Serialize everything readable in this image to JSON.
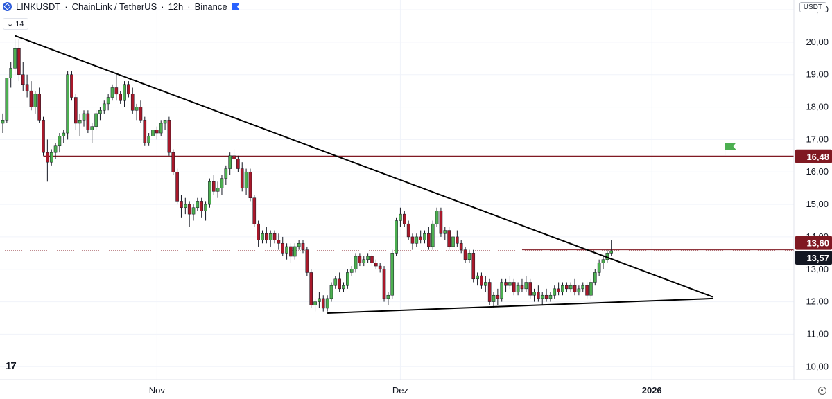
{
  "header": {
    "symbol": "LINKUSDT",
    "name": "ChainLink / TetherUS",
    "interval": "12h",
    "exchange": "Binance",
    "separator": "·",
    "slash_icon": "logo-icon",
    "flag_icon": "flag-icon"
  },
  "interval_indicator": {
    "label": "14",
    "icon": "chevron-down-icon"
  },
  "currency_label": "USDT",
  "chart_data": {
    "type": "candlestick",
    "title": "LINKUSDT · ChainLink / TetherUS · 12h · Binance",
    "y_axis": {
      "ticks": [
        "21,00",
        "20,00",
        "19,00",
        "18,00",
        "17,00",
        "16,00",
        "15,00",
        "14,00",
        "13,00",
        "12,00",
        "11,00",
        "10,00"
      ],
      "tick_values": [
        21,
        20,
        19,
        18,
        17,
        16,
        15,
        14,
        13,
        12,
        11,
        10
      ],
      "range": [
        9.6,
        21.3
      ]
    },
    "x_axis": {
      "labels": [
        {
          "text": "Nov",
          "index": 38
        },
        {
          "text": "Dez",
          "index": 98
        },
        {
          "text": "2026",
          "index": 160
        }
      ],
      "range": [
        0,
        195
      ]
    },
    "price_labels": [
      {
        "text": "16,48",
        "value": 16.48,
        "color": "#801922"
      },
      {
        "text": "13,60",
        "value": 13.6,
        "color": "#801922"
      },
      {
        "text": "13,57",
        "value": 13.57,
        "color": "#131722"
      }
    ],
    "horizontal_lines": [
      {
        "value": 16.48,
        "color": "#801922",
        "style": "solid",
        "from_index": 10
      },
      {
        "value": 13.57,
        "color": "#801922",
        "style": "dotted",
        "from_index": 0
      },
      {
        "value": 13.6,
        "color": "#801922",
        "style": "solid",
        "from_index": 128
      }
    ],
    "trend_lines": [
      {
        "from": [
          3,
          20.2
        ],
        "to": [
          175,
          12.15
        ],
        "color": "#000000"
      },
      {
        "from": [
          80,
          11.65
        ],
        "to": [
          175,
          12.1
        ],
        "color": "#000000"
      }
    ],
    "marker": {
      "index": 178,
      "value": 16.9,
      "color": "#4caf50",
      "shape": "flag"
    },
    "colors": {
      "up": "#4caf50",
      "down": "#a8182a",
      "grid": "#f0f3fa"
    },
    "candles": [
      [
        17.5,
        17.8,
        17.2,
        17.6
      ],
      [
        17.6,
        18.9,
        17.5,
        18.9
      ],
      [
        18.9,
        19.4,
        18.6,
        19.2
      ],
      [
        19.2,
        20.1,
        19.0,
        19.8
      ],
      [
        19.8,
        20.1,
        18.8,
        19.0
      ],
      [
        19.0,
        19.4,
        18.5,
        18.7
      ],
      [
        18.7,
        19.0,
        18.3,
        18.5
      ],
      [
        18.5,
        18.8,
        17.9,
        18.0
      ],
      [
        18.0,
        18.5,
        17.8,
        18.4
      ],
      [
        18.4,
        18.6,
        17.5,
        17.6
      ],
      [
        17.6,
        17.7,
        16.5,
        16.6
      ],
      [
        16.6,
        17.0,
        15.7,
        16.3
      ],
      [
        16.3,
        16.7,
        16.2,
        16.6
      ],
      [
        16.6,
        16.9,
        16.4,
        16.8
      ],
      [
        16.8,
        17.2,
        16.6,
        17.1
      ],
      [
        17.1,
        17.3,
        16.9,
        17.2
      ],
      [
        17.2,
        19.1,
        17.0,
        19.0
      ],
      [
        19.0,
        19.1,
        18.2,
        18.3
      ],
      [
        18.3,
        18.4,
        17.3,
        17.5
      ],
      [
        17.5,
        17.8,
        17.1,
        17.6
      ],
      [
        17.6,
        17.9,
        17.4,
        17.8
      ],
      [
        17.8,
        17.9,
        17.2,
        17.3
      ],
      [
        17.3,
        17.5,
        16.9,
        17.4
      ],
      [
        17.4,
        17.9,
        17.3,
        17.8
      ],
      [
        17.8,
        18.0,
        17.6,
        17.9
      ],
      [
        17.9,
        18.2,
        17.8,
        18.1
      ],
      [
        18.1,
        18.4,
        17.9,
        18.3
      ],
      [
        18.3,
        18.7,
        18.2,
        18.6
      ],
      [
        18.6,
        19.0,
        18.2,
        18.4
      ],
      [
        18.4,
        18.5,
        18.1,
        18.2
      ],
      [
        18.2,
        18.8,
        18.0,
        18.7
      ],
      [
        18.7,
        18.8,
        18.3,
        18.4
      ],
      [
        18.4,
        18.6,
        17.8,
        17.9
      ],
      [
        17.9,
        18.1,
        17.6,
        18.0
      ],
      [
        18.0,
        18.2,
        17.5,
        17.6
      ],
      [
        17.6,
        17.7,
        16.8,
        16.9
      ],
      [
        16.9,
        17.2,
        16.8,
        17.1
      ],
      [
        17.1,
        17.5,
        17.0,
        17.3
      ],
      [
        17.3,
        17.4,
        17.0,
        17.2
      ],
      [
        17.2,
        17.6,
        17.1,
        17.5
      ],
      [
        17.5,
        17.6,
        17.3,
        17.6
      ],
      [
        17.6,
        17.7,
        16.5,
        16.6
      ],
      [
        16.6,
        16.7,
        15.9,
        16.0
      ],
      [
        16.0,
        16.1,
        15.0,
        15.1
      ],
      [
        15.1,
        15.3,
        14.6,
        14.9
      ],
      [
        14.9,
        15.2,
        14.7,
        15.0
      ],
      [
        15.0,
        15.1,
        14.3,
        14.7
      ],
      [
        14.7,
        15.0,
        14.5,
        14.9
      ],
      [
        14.9,
        15.2,
        14.8,
        15.1
      ],
      [
        15.1,
        15.2,
        14.6,
        14.8
      ],
      [
        14.8,
        15.1,
        14.5,
        15.0
      ],
      [
        15.0,
        15.8,
        14.9,
        15.7
      ],
      [
        15.7,
        15.9,
        15.3,
        15.4
      ],
      [
        15.4,
        15.7,
        15.2,
        15.5
      ],
      [
        15.5,
        15.9,
        15.3,
        15.8
      ],
      [
        15.8,
        16.2,
        15.6,
        16.1
      ],
      [
        16.1,
        16.6,
        15.9,
        16.5
      ],
      [
        16.5,
        16.7,
        16.3,
        16.4
      ],
      [
        16.4,
        16.5,
        16.0,
        16.1
      ],
      [
        16.1,
        16.3,
        15.4,
        15.5
      ],
      [
        15.5,
        16.1,
        15.3,
        16.0
      ],
      [
        16.0,
        16.1,
        15.1,
        15.2
      ],
      [
        15.2,
        15.3,
        14.3,
        14.4
      ],
      [
        14.4,
        14.5,
        13.7,
        13.9
      ],
      [
        13.9,
        14.2,
        13.8,
        14.1
      ],
      [
        14.1,
        14.3,
        13.8,
        13.9
      ],
      [
        13.9,
        14.2,
        13.7,
        14.1
      ],
      [
        14.1,
        14.2,
        13.8,
        13.9
      ],
      [
        13.9,
        14.1,
        13.6,
        13.8
      ],
      [
        13.8,
        14.0,
        13.4,
        13.5
      ],
      [
        13.5,
        13.8,
        13.3,
        13.7
      ],
      [
        13.7,
        13.8,
        13.2,
        13.4
      ],
      [
        13.4,
        13.8,
        13.3,
        13.7
      ],
      [
        13.7,
        13.9,
        13.6,
        13.8
      ],
      [
        13.8,
        13.9,
        13.5,
        13.6
      ],
      [
        13.6,
        13.7,
        12.8,
        12.9
      ],
      [
        12.9,
        13.0,
        11.8,
        11.9
      ],
      [
        11.9,
        12.1,
        11.7,
        12.0
      ],
      [
        12.0,
        12.3,
        11.8,
        12.1
      ],
      [
        12.1,
        12.2,
        11.7,
        11.8
      ],
      [
        11.8,
        12.2,
        11.7,
        12.1
      ],
      [
        12.1,
        12.6,
        12.0,
        12.5
      ],
      [
        12.5,
        12.8,
        12.4,
        12.7
      ],
      [
        12.7,
        12.9,
        12.3,
        12.4
      ],
      [
        12.4,
        12.6,
        12.3,
        12.5
      ],
      [
        12.5,
        13.0,
        12.4,
        12.9
      ],
      [
        12.9,
        13.1,
        12.8,
        13.0
      ],
      [
        13.0,
        13.5,
        12.9,
        13.4
      ],
      [
        13.4,
        13.5,
        13.1,
        13.2
      ],
      [
        13.2,
        13.4,
        13.1,
        13.3
      ],
      [
        13.3,
        13.5,
        13.2,
        13.4
      ],
      [
        13.4,
        13.5,
        13.1,
        13.2
      ],
      [
        13.2,
        13.3,
        13.0,
        13.1
      ],
      [
        13.1,
        13.2,
        12.9,
        13.0
      ],
      [
        13.0,
        13.1,
        12.0,
        12.1
      ],
      [
        12.1,
        12.3,
        11.9,
        12.2
      ],
      [
        12.2,
        13.6,
        12.1,
        13.5
      ],
      [
        13.5,
        14.6,
        13.4,
        14.5
      ],
      [
        14.5,
        14.9,
        14.3,
        14.7
      ],
      [
        14.7,
        14.8,
        14.3,
        14.4
      ],
      [
        14.4,
        14.5,
        13.9,
        14.0
      ],
      [
        14.0,
        14.1,
        13.6,
        13.8
      ],
      [
        13.8,
        14.1,
        13.7,
        14.0
      ],
      [
        14.0,
        14.2,
        13.8,
        13.9
      ],
      [
        13.9,
        14.2,
        13.8,
        14.1
      ],
      [
        14.1,
        14.3,
        13.6,
        13.7
      ],
      [
        13.7,
        14.5,
        13.6,
        14.4
      ],
      [
        14.4,
        14.9,
        14.3,
        14.8
      ],
      [
        14.8,
        14.9,
        14.0,
        14.1
      ],
      [
        14.1,
        14.3,
        13.9,
        14.2
      ],
      [
        14.2,
        14.3,
        13.6,
        13.7
      ],
      [
        13.7,
        14.1,
        13.6,
        14.0
      ],
      [
        14.0,
        14.2,
        13.7,
        13.8
      ],
      [
        13.8,
        13.9,
        13.5,
        13.6
      ],
      [
        13.6,
        13.7,
        13.2,
        13.3
      ],
      [
        13.3,
        13.6,
        13.2,
        13.5
      ],
      [
        13.5,
        13.6,
        12.6,
        12.7
      ],
      [
        12.7,
        12.9,
        12.5,
        12.8
      ],
      [
        12.8,
        12.9,
        12.4,
        12.5
      ],
      [
        12.5,
        12.8,
        12.3,
        12.6
      ],
      [
        12.6,
        12.7,
        11.9,
        12.0
      ],
      [
        12.0,
        12.3,
        11.8,
        12.2
      ],
      [
        12.2,
        12.4,
        11.9,
        12.1
      ],
      [
        12.1,
        12.7,
        12.0,
        12.6
      ],
      [
        12.6,
        12.7,
        12.3,
        12.5
      ],
      [
        12.5,
        12.8,
        12.4,
        12.6
      ],
      [
        12.6,
        12.7,
        12.2,
        12.3
      ],
      [
        12.3,
        12.6,
        12.2,
        12.5
      ],
      [
        12.5,
        12.7,
        12.3,
        12.4
      ],
      [
        12.4,
        12.8,
        12.3,
        12.6
      ],
      [
        12.6,
        12.7,
        12.1,
        12.2
      ],
      [
        12.2,
        12.4,
        12.0,
        12.3
      ],
      [
        12.3,
        12.5,
        12.0,
        12.1
      ],
      [
        12.1,
        12.3,
        11.9,
        12.2
      ],
      [
        12.2,
        12.4,
        12.0,
        12.1
      ],
      [
        12.1,
        12.3,
        12.0,
        12.2
      ],
      [
        12.2,
        12.5,
        12.1,
        12.4
      ],
      [
        12.4,
        12.6,
        12.2,
        12.3
      ],
      [
        12.3,
        12.6,
        12.2,
        12.5
      ],
      [
        12.5,
        12.6,
        12.3,
        12.4
      ],
      [
        12.4,
        12.6,
        12.3,
        12.5
      ],
      [
        12.5,
        12.7,
        12.2,
        12.3
      ],
      [
        12.3,
        12.5,
        12.2,
        12.4
      ],
      [
        12.4,
        12.6,
        12.3,
        12.5
      ],
      [
        12.5,
        12.6,
        12.1,
        12.2
      ],
      [
        12.2,
        12.7,
        12.1,
        12.6
      ],
      [
        12.6,
        13.0,
        12.5,
        12.9
      ],
      [
        12.9,
        13.3,
        12.8,
        13.2
      ],
      [
        13.2,
        13.4,
        13.0,
        13.3
      ],
      [
        13.3,
        13.6,
        13.2,
        13.5
      ],
      [
        13.5,
        13.9,
        13.4,
        13.57
      ]
    ]
  }
}
